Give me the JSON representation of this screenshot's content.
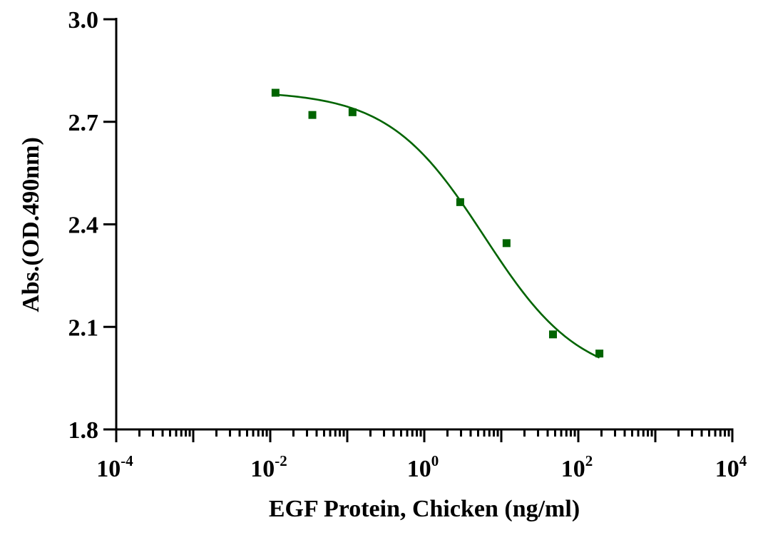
{
  "chart_data": {
    "type": "scatter",
    "title": "",
    "xlabel": "EGF Protein, Chicken  (ng/ml)",
    "ylabel": "Abs.(OD.490nm)",
    "x_scale": "log",
    "xlim": [
      0.0001,
      10000
    ],
    "ylim": [
      1.8,
      3.0
    ],
    "grid": false,
    "legend": "none",
    "x_ticks": [
      {
        "base": "10",
        "exp": "-4",
        "value": 0.0001
      },
      {
        "base": "10",
        "exp": "-2",
        "value": 0.01
      },
      {
        "base": "10",
        "exp": "0",
        "value": 1
      },
      {
        "base": "10",
        "exp": "2",
        "value": 100
      },
      {
        "base": "10",
        "exp": "4",
        "value": 10000
      }
    ],
    "y_ticks": [
      "1.8",
      "2.1",
      "2.4",
      "2.7",
      "3.0"
    ],
    "series": [
      {
        "color": "#006400",
        "marker": "square",
        "points": [
          {
            "x": 0.0117,
            "y": 2.785
          },
          {
            "x": 0.0352,
            "y": 2.72
          },
          {
            "x": 0.117,
            "y": 2.728
          },
          {
            "x": 2.93,
            "y": 2.465
          },
          {
            "x": 11.7,
            "y": 2.345
          },
          {
            "x": 46.9,
            "y": 2.078
          },
          {
            "x": 188,
            "y": 2.022
          }
        ],
        "fit": {
          "type": "4PL",
          "x_range": [
            0.0117,
            188
          ],
          "top": 2.79,
          "bottom": 1.94,
          "ec50": 6.0,
          "hill": 0.7
        }
      }
    ]
  }
}
